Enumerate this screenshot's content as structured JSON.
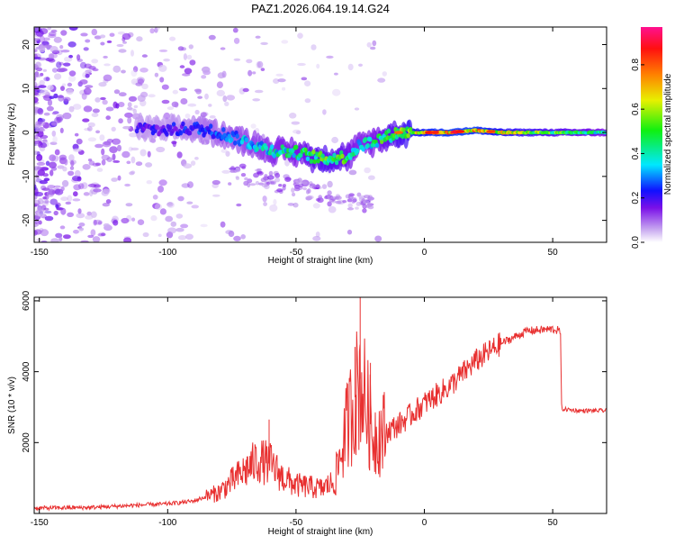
{
  "title": "PAZ1.2026.064.19.14.G24",
  "colors": {
    "snr_line": "#e83030",
    "bar_stops": [
      "#ffffff",
      "#c8a8f0",
      "#7a10e8",
      "#1010ff",
      "#00e8ff",
      "#10f010",
      "#e8f000",
      "#ff8000",
      "#ff1010",
      "#ff1090"
    ]
  },
  "chart_data": [
    {
      "type": "heatmap",
      "xlabel": "Height of straight line (km)",
      "ylabel": "Frequency (Hz)",
      "xlim": [
        -152,
        71
      ],
      "ylim": [
        -25,
        24
      ],
      "x_ticks": [
        "-150",
        "-100",
        "-50",
        "0",
        "50"
      ],
      "x_tick_values": [
        -150,
        -100,
        -50,
        0,
        50
      ],
      "y_ticks": [
        "-20",
        "-10",
        "0",
        "10",
        "20"
      ],
      "y_tick_values": [
        -20,
        -10,
        0,
        10,
        20
      ],
      "colorbar": {
        "label": "Normalized spectral amplitude",
        "range": [
          0,
          0.97
        ],
        "ticks": [
          "0.0",
          "0.2",
          "0.4",
          "0.6",
          "0.8"
        ],
        "tick_values": [
          0,
          0.2,
          0.4,
          0.6,
          0.8
        ]
      },
      "ridge": {
        "x": [
          -112,
          -100,
          -90,
          -80,
          -70,
          -60,
          -50,
          -40,
          -30,
          -25,
          -20,
          -10,
          0,
          10,
          20,
          30,
          40,
          50,
          60,
          70
        ],
        "freq": [
          1,
          0.5,
          1,
          0,
          -2,
          -4,
          -4.5,
          -6,
          -5.5,
          -3,
          -2,
          0,
          0,
          0,
          0.5,
          0,
          0,
          0,
          0,
          0
        ],
        "amplitude": [
          0.2,
          0.2,
          0.25,
          0.3,
          0.35,
          0.4,
          0.45,
          0.55,
          0.5,
          0.4,
          0.45,
          0.55,
          0.7,
          0.75,
          0.75,
          0.65,
          0.6,
          0.55,
          0.5,
          0.45
        ]
      }
    },
    {
      "type": "line",
      "xlabel": "Height of straight line (km)",
      "ylabel": "SNR (10 * v/v)",
      "xlim": [
        -152,
        71
      ],
      "ylim": [
        0,
        6100
      ],
      "x_ticks": [
        "-150",
        "-100",
        "-50",
        "0",
        "50"
      ],
      "x_tick_values": [
        -150,
        -100,
        -50,
        0,
        50
      ],
      "y_ticks": [
        "2000",
        "4000",
        "6000"
      ],
      "y_tick_values": [
        2000,
        4000,
        6000
      ],
      "series": [
        {
          "name": "SNR",
          "x": [
            -152,
            -130,
            -110,
            -100,
            -90,
            -80,
            -75,
            -70,
            -65,
            -60,
            -55,
            -50,
            -45,
            -40,
            -35,
            -30,
            -25,
            -20,
            -15,
            -10,
            -5,
            0,
            10,
            20,
            30,
            40,
            50,
            53,
            53.5,
            60,
            71
          ],
          "y": [
            150,
            170,
            240,
            270,
            350,
            600,
            900,
            1200,
            1500,
            1400,
            1000,
            800,
            750,
            700,
            900,
            2500,
            3800,
            2200,
            2300,
            2500,
            2800,
            3100,
            3600,
            4300,
            4800,
            5150,
            5200,
            5150,
            2950,
            2900,
            2900
          ],
          "peaks": [
            {
              "x": -60.5,
              "y": 2650
            },
            {
              "x": -25,
              "y": 6100
            },
            {
              "x": -27,
              "y": 4700
            },
            {
              "x": -21,
              "y": 4250
            }
          ]
        }
      ]
    }
  ]
}
